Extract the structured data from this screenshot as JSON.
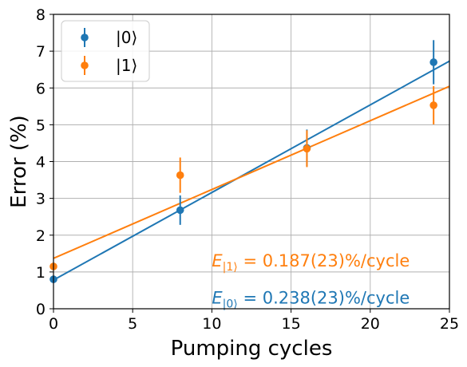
{
  "chart_data": {
    "type": "scatter",
    "title": "",
    "xlabel": "Pumping cycles",
    "ylabel": "Error (%)",
    "xlim": [
      0,
      25
    ],
    "ylim": [
      0,
      8
    ],
    "xticks": [
      "0",
      "5",
      "10",
      "15",
      "20",
      "25"
    ],
    "yticks": [
      "0",
      "1",
      "2",
      "3",
      "4",
      "5",
      "6",
      "7",
      "8"
    ],
    "grid": true,
    "legend": "top-left",
    "series": [
      {
        "name": "|0⟩",
        "color": "#1f77b4",
        "x": [
          0,
          8,
          16,
          24
        ],
        "y": [
          0.8,
          2.68,
          4.37,
          6.7
        ],
        "err": [
          0.05,
          0.4,
          0.5,
          0.6
        ],
        "fit": {
          "intercept": 0.78,
          "slope": 0.238
        },
        "annotation": {
          "sym": "E",
          "sub": "|0⟩",
          "text": " = 0.238(23)%/cycle",
          "at": [
            10,
            0.08
          ]
        }
      },
      {
        "name": "|1⟩",
        "color": "#ff7f0e",
        "x": [
          0,
          8,
          16,
          24
        ],
        "y": [
          1.15,
          3.63,
          4.35,
          5.53
        ],
        "err": [
          0.05,
          0.48,
          0.5,
          0.52
        ],
        "fit": {
          "intercept": 1.37,
          "slope": 0.187
        },
        "annotation": {
          "sym": "E",
          "sub": "|1⟩",
          "text": " = 0.187(23)%/cycle",
          "at": [
            10,
            1.08
          ]
        }
      }
    ]
  }
}
